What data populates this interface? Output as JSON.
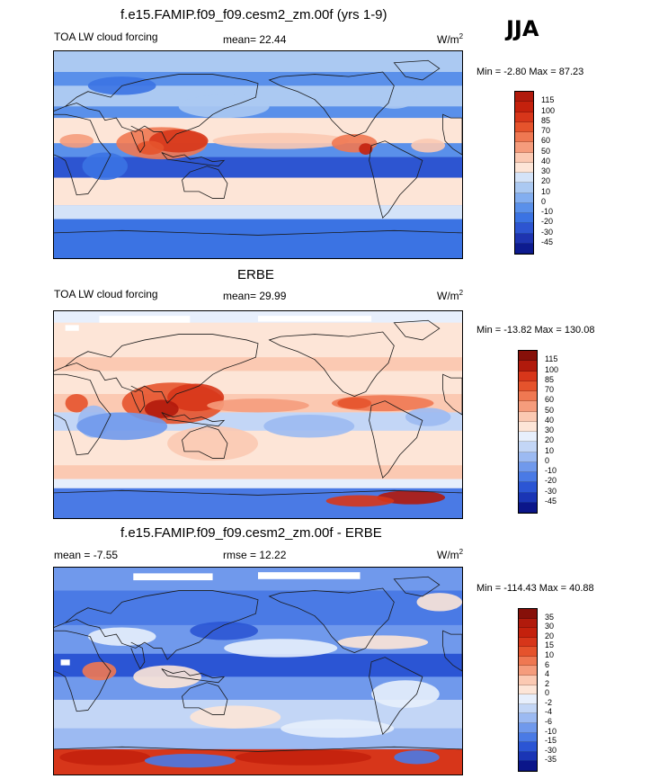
{
  "season": "JJA",
  "colors": {
    "coast": "#1a1a1a",
    "panel_bg": "#ffffff"
  },
  "panels": [
    {
      "id": "model",
      "title": "f.e15.FAMIP.f09_f09.cesm2_zm.00f (yrs 1-9)",
      "left_label": "TOA LW cloud forcing",
      "stat_label": "mean=",
      "stat_value": "22.44",
      "units": "W/m",
      "units_sup": "2",
      "minmax": "Min =  -2.80 Max =  87.23",
      "colorbar_labels": [
        "115",
        "100",
        "85",
        "70",
        "60",
        "50",
        "40",
        "30",
        "20",
        "10",
        "0",
        "-10",
        "-20",
        "-30",
        "-45"
      ],
      "colorbar_colors": [
        "#b11a0c",
        "#c4210d",
        "#d7361a",
        "#e5532c",
        "#ef7852",
        "#f59c7c",
        "#fbc9b2",
        "#fde5d7",
        "#d4e3f8",
        "#abc9f2",
        "#83aef0",
        "#5a90ea",
        "#3b73e3",
        "#2d55d1",
        "#1e34b0",
        "#0d1b8f"
      ],
      "field": "model"
    },
    {
      "id": "obs",
      "title": "ERBE",
      "left_label": "TOA LW cloud forcing",
      "stat_label": "mean=",
      "stat_value": "29.99",
      "units": "W/m",
      "units_sup": "2",
      "minmax": "Min = -13.82 Max = 130.08",
      "colorbar_labels": [
        "115",
        "100",
        "85",
        "70",
        "60",
        "50",
        "40",
        "30",
        "20",
        "10",
        "0",
        "-10",
        "-20",
        "-30",
        "-45"
      ],
      "colorbar_colors": [
        "#861009",
        "#b11a0c",
        "#d7361a",
        "#e5532c",
        "#ef7852",
        "#f59c7c",
        "#fbc9b2",
        "#fde5d7",
        "#e7effc",
        "#c3d6f6",
        "#9cbaf2",
        "#7099ec",
        "#4a7ae5",
        "#2b55d4",
        "#1a35b5",
        "#0b168a"
      ],
      "field": "obs"
    },
    {
      "id": "diff",
      "title": "f.e15.FAMIP.f09_f09.cesm2_zm.00f - ERBE",
      "left_label": "mean =  -7.55",
      "stat_label": "rmse =",
      "stat_value": "12.22",
      "units": "W/m",
      "units_sup": "2",
      "minmax": "Min = -114.43 Max =  40.88",
      "colorbar_labels": [
        "35",
        "30",
        "20",
        "15",
        "10",
        "6",
        "4",
        "2",
        "0",
        "-2",
        "-4",
        "-6",
        "-10",
        "-15",
        "-30",
        "-35"
      ],
      "colorbar_colors": [
        "#861009",
        "#b11a0c",
        "#c4210d",
        "#d7361a",
        "#e5532c",
        "#ef7852",
        "#f59c7c",
        "#fbc9b2",
        "#fde5d7",
        "#e7effc",
        "#c3d6f6",
        "#9cbaf2",
        "#7099ec",
        "#4a7ae5",
        "#2b55d4",
        "#1a35b5",
        "#0b168a"
      ],
      "field": "diff"
    }
  ]
}
